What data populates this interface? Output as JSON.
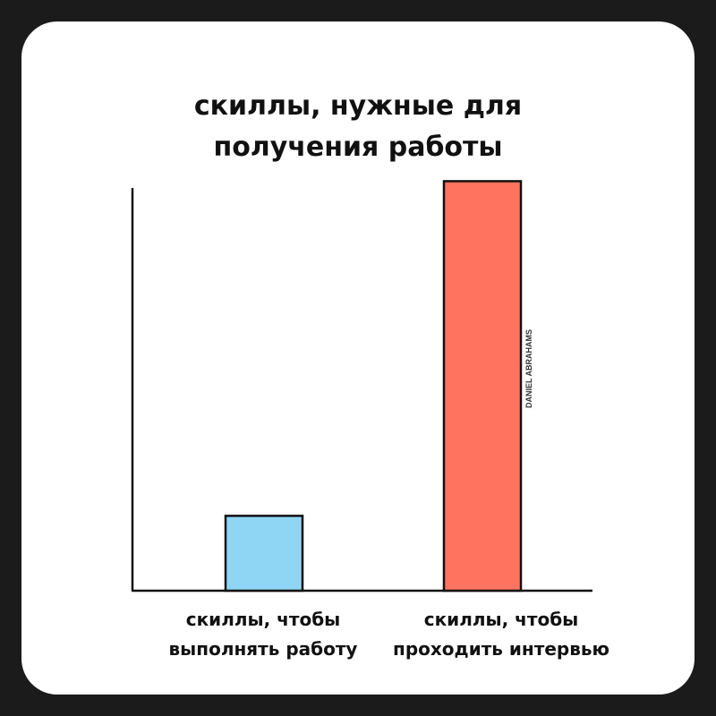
{
  "chart_data": {
    "type": "bar",
    "title": [
      "скиллы, нужные для",
      "получения работы"
    ],
    "categories": [
      [
        "скиллы, чтобы",
        "выполнять работу"
      ],
      [
        "скиллы, чтобы",
        "проходить интервью"
      ]
    ],
    "values": [
      17,
      93
    ],
    "colors": [
      "#8fd6f4",
      "#ff735f"
    ],
    "ylim": [
      0,
      100
    ],
    "grid": false,
    "legend": "none",
    "watermark": "DANIEL ABRAHAMS"
  }
}
